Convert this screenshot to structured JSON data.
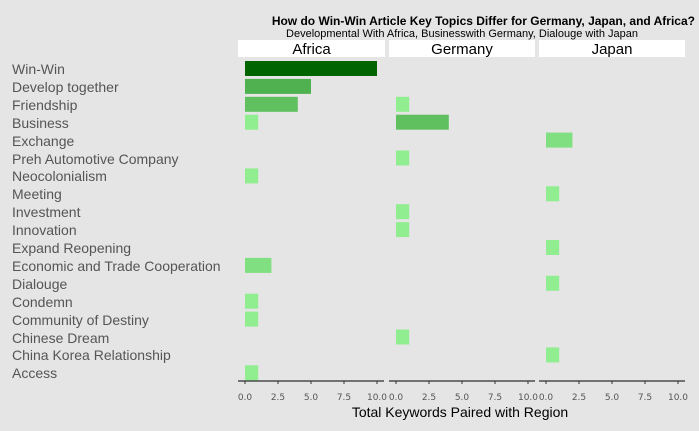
{
  "chart_data": {
    "type": "bar",
    "orientation": "horizontal",
    "title": "How do Win-Win Article Key Topics Differ for Germany, Japan, and Africa?",
    "subtitle": "Developmental With Africa, Businesswith Germany, Dialouge with Japan",
    "xlabel": "Total Keywords Paired with Region",
    "ylabel": "",
    "xlim": [
      0,
      10
    ],
    "xticks": [
      "0.0",
      "2.5",
      "5.0",
      "7.5",
      "10.0"
    ],
    "categories": [
      "Win-Win",
      "Develop together",
      "Friendship",
      "Business",
      "Exchange",
      "Preh Automotive Company",
      "Neocolonialism",
      "Meeting",
      "Investment",
      "Innovation",
      "Expand Reopening",
      "Economic and Trade Cooperation",
      "Dialouge",
      "Condemn",
      "Community of Destiny",
      "Chinese Dream",
      "China Korea Relationship",
      "Access"
    ],
    "facets": [
      {
        "name": "Africa",
        "values": [
          10,
          5,
          4,
          1,
          0,
          0,
          1,
          0,
          0,
          0,
          0,
          2,
          0,
          1,
          1,
          0,
          0,
          1
        ]
      },
      {
        "name": "Germany",
        "values": [
          0,
          0,
          1,
          4,
          0,
          1,
          0,
          0,
          1,
          1,
          0,
          0,
          0,
          0,
          0,
          1,
          0,
          0
        ]
      },
      {
        "name": "Japan",
        "values": [
          0,
          0,
          0,
          0,
          2,
          0,
          0,
          1,
          0,
          0,
          1,
          0,
          1,
          0,
          0,
          0,
          1,
          0
        ]
      }
    ],
    "color_scale": {
      "low": "#90ee90",
      "high": "#006400"
    },
    "legend": "none",
    "grid": false
  }
}
